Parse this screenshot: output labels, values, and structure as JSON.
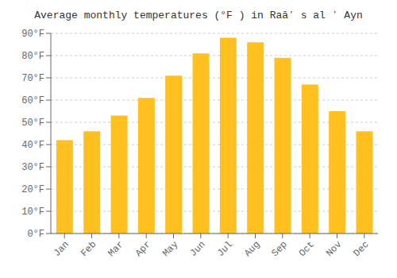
{
  "chart_data": {
    "type": "bar",
    "title": "Average monthly temperatures (°F ) in Raāʼ s al ʼ Ayn",
    "categories": [
      "Jan",
      "Feb",
      "Mar",
      "Apr",
      "May",
      "Jun",
      "Jul",
      "Aug",
      "Sep",
      "Oct",
      "Nov",
      "Dec"
    ],
    "values": [
      42,
      46,
      53,
      61,
      71,
      81,
      88,
      86,
      79,
      67,
      55,
      46
    ],
    "color": "#FFC020",
    "ylim": [
      0,
      90
    ],
    "yticks": [
      {
        "value": 0,
        "label": "0°F"
      },
      {
        "value": 10,
        "label": "10°F"
      },
      {
        "value": 20,
        "label": "20°F"
      },
      {
        "value": 30,
        "label": "30°F"
      },
      {
        "value": 40,
        "label": "40°F"
      },
      {
        "value": 50,
        "label": "50°F"
      },
      {
        "value": 60,
        "label": "60°F"
      },
      {
        "value": 70,
        "label": "70°F"
      },
      {
        "value": 80,
        "label": "80°F"
      },
      {
        "value": 90,
        "label": "90°F"
      }
    ],
    "grid": true
  }
}
